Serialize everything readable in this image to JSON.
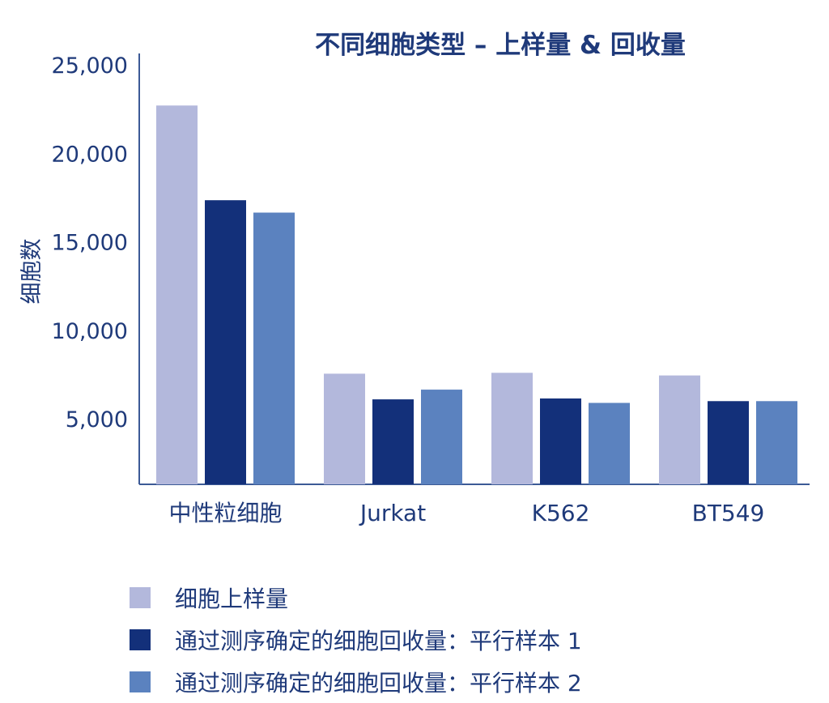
{
  "chart_data": {
    "type": "bar",
    "title": "不同细胞类型 – 上样量 & 回收量",
    "ylabel": "细胞数",
    "xlabel": "",
    "categories": [
      "中性粒细胞",
      "Jurkat",
      "K562",
      "BT549"
    ],
    "ylim": [
      1300,
      25000
    ],
    "yticks": [
      5000,
      10000,
      15000,
      20000,
      25000
    ],
    "ytick_labels": [
      "5,000",
      "10,000",
      "15,000",
      "20,000",
      "25,000"
    ],
    "grid": false,
    "legend_position": "bottom",
    "series": [
      {
        "name": "细胞上样量",
        "values": [
          22700,
          7550,
          7600,
          7450
        ],
        "color": "#b3b8dc"
      },
      {
        "name": "通过测序确定的细胞回收量：平行样本 1",
        "values": [
          17350,
          6100,
          6150,
          6000
        ],
        "color": "#13307a"
      },
      {
        "name": "通过测序确定的细胞回收量：平行样本 2",
        "values": [
          16650,
          6650,
          5900,
          6000
        ],
        "color": "#5b82bf"
      }
    ]
  }
}
